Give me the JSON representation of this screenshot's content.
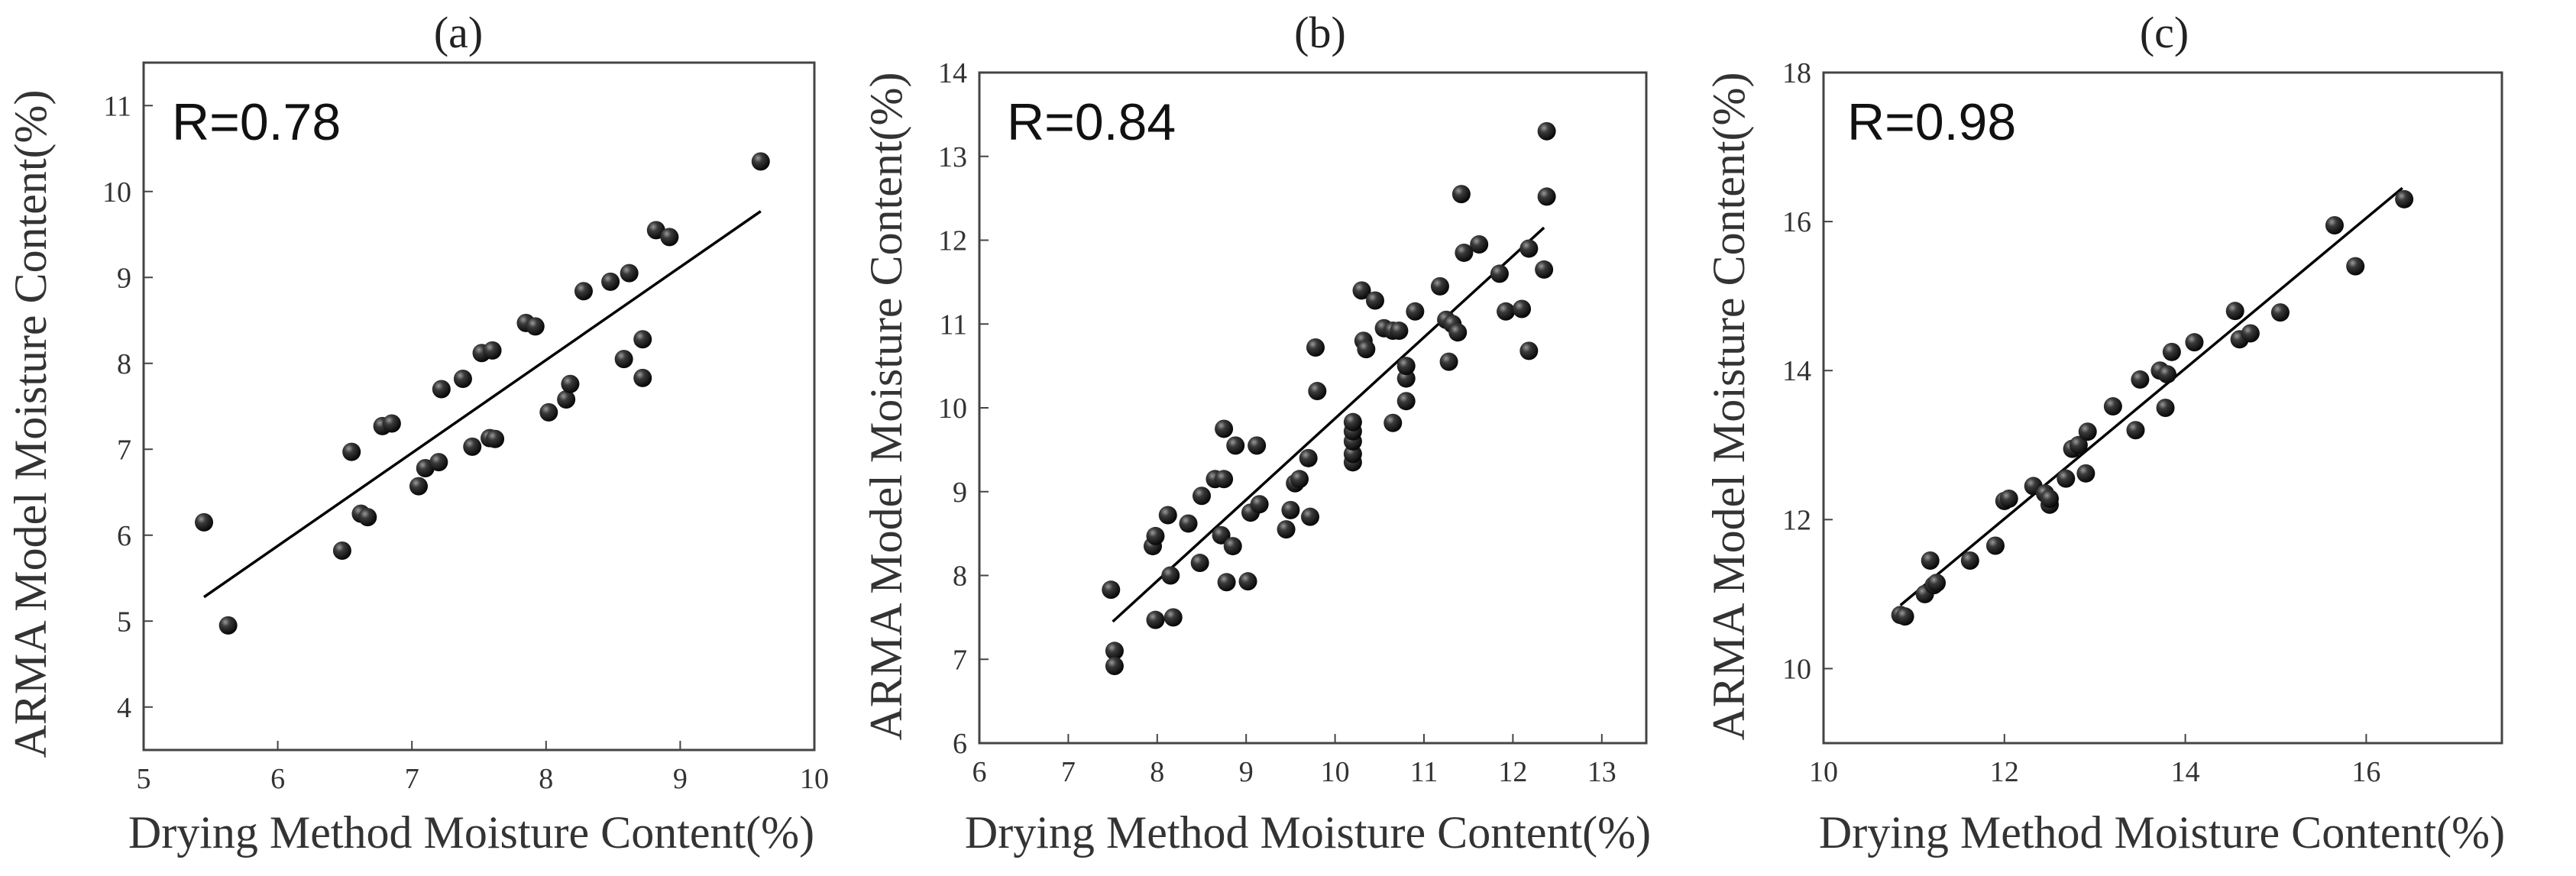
{
  "chart_data": [
    {
      "type": "scatter",
      "title": "(a)",
      "annotation": "R=0.78",
      "xlabel": "Drying Method Moisture Content(%)",
      "ylabel": "ARMA Model Moisture Content(%)",
      "xlim": [
        5,
        10
      ],
      "ylim": [
        3.5,
        11.5
      ],
      "xticks": [
        "5",
        "6",
        "7",
        "8",
        "9",
        "10"
      ],
      "yticks": [
        "4",
        "5",
        "6",
        "7",
        "8",
        "9",
        "10",
        "11"
      ],
      "xtick_values": [
        5,
        6,
        7,
        8,
        9,
        10
      ],
      "ytick_values": [
        4,
        5,
        6,
        7,
        8,
        9,
        10,
        11
      ],
      "fit_line": [
        [
          5.45,
          5.28
        ],
        [
          9.6,
          9.77
        ]
      ],
      "points": [
        [
          5.45,
          6.15
        ],
        [
          5.63,
          4.95
        ],
        [
          6.48,
          5.82
        ],
        [
          6.55,
          6.97
        ],
        [
          6.62,
          6.25
        ],
        [
          6.67,
          6.21
        ],
        [
          6.78,
          7.27
        ],
        [
          6.85,
          7.3
        ],
        [
          7.05,
          6.57
        ],
        [
          7.1,
          6.78
        ],
        [
          7.22,
          7.7
        ],
        [
          7.2,
          6.85
        ],
        [
          7.38,
          7.82
        ],
        [
          7.45,
          7.03
        ],
        [
          7.52,
          8.12
        ],
        [
          7.6,
          8.15
        ],
        [
          7.58,
          7.13
        ],
        [
          7.62,
          7.12
        ],
        [
          7.85,
          8.47
        ],
        [
          7.92,
          8.43
        ],
        [
          8.02,
          7.43
        ],
        [
          8.15,
          7.58
        ],
        [
          8.18,
          7.76
        ],
        [
          8.28,
          8.84
        ],
        [
          8.48,
          8.95
        ],
        [
          8.58,
          8.05
        ],
        [
          8.62,
          9.05
        ],
        [
          8.72,
          8.28
        ],
        [
          8.72,
          7.83
        ],
        [
          8.82,
          9.55
        ],
        [
          8.92,
          9.47
        ],
        [
          9.6,
          10.35
        ]
      ]
    },
    {
      "type": "scatter",
      "title": "(b)",
      "annotation": "R=0.84",
      "xlabel": "Drying Method Moisture Content(%)",
      "ylabel": "ARMA Model Moisture Content(%)",
      "xlim": [
        6,
        13.5
      ],
      "ylim": [
        6,
        14
      ],
      "xticks": [
        "6",
        "7",
        "8",
        "9",
        "10",
        "11",
        "12",
        "13"
      ],
      "yticks": [
        "6",
        "7",
        "8",
        "9",
        "10",
        "11",
        "12",
        "13",
        "14"
      ],
      "xtick_values": [
        6,
        7,
        8,
        9,
        10,
        11,
        12,
        13
      ],
      "ytick_values": [
        6,
        7,
        8,
        9,
        10,
        11,
        12,
        13,
        14
      ],
      "fit_line": [
        [
          7.5,
          7.45
        ],
        [
          12.35,
          12.15
        ]
      ],
      "points": [
        [
          7.48,
          7.83
        ],
        [
          7.52,
          7.1
        ],
        [
          7.52,
          6.92
        ],
        [
          7.95,
          8.35
        ],
        [
          7.98,
          8.47
        ],
        [
          7.98,
          7.47
        ],
        [
          8.12,
          8.72
        ],
        [
          8.15,
          8.0
        ],
        [
          8.18,
          7.5
        ],
        [
          8.35,
          8.62
        ],
        [
          8.48,
          8.15
        ],
        [
          8.5,
          8.95
        ],
        [
          8.65,
          9.15
        ],
        [
          8.72,
          8.48
        ],
        [
          8.75,
          9.15
        ],
        [
          8.75,
          9.75
        ],
        [
          8.78,
          7.92
        ],
        [
          8.85,
          8.35
        ],
        [
          8.88,
          9.55
        ],
        [
          9.02,
          7.93
        ],
        [
          9.05,
          8.75
        ],
        [
          9.12,
          9.55
        ],
        [
          9.15,
          8.85
        ],
        [
          9.45,
          8.55
        ],
        [
          9.5,
          8.78
        ],
        [
          9.55,
          9.1
        ],
        [
          9.6,
          9.15
        ],
        [
          9.7,
          9.4
        ],
        [
          9.72,
          8.7
        ],
        [
          9.78,
          10.72
        ],
        [
          9.8,
          10.2
        ],
        [
          10.2,
          9.35
        ],
        [
          10.2,
          9.45
        ],
        [
          10.2,
          9.6
        ],
        [
          10.2,
          9.72
        ],
        [
          10.2,
          9.83
        ],
        [
          10.3,
          11.4
        ],
        [
          10.32,
          10.8
        ],
        [
          10.35,
          10.7
        ],
        [
          10.45,
          11.28
        ],
        [
          10.55,
          10.95
        ],
        [
          10.65,
          9.82
        ],
        [
          10.65,
          10.92
        ],
        [
          10.72,
          10.92
        ],
        [
          10.8,
          10.08
        ],
        [
          10.8,
          10.35
        ],
        [
          10.8,
          10.5
        ],
        [
          10.9,
          11.15
        ],
        [
          11.18,
          11.45
        ],
        [
          11.25,
          11.05
        ],
        [
          11.28,
          10.55
        ],
        [
          11.32,
          11.0
        ],
        [
          11.38,
          10.9
        ],
        [
          11.42,
          12.55
        ],
        [
          11.45,
          11.85
        ],
        [
          11.62,
          11.95
        ],
        [
          11.85,
          11.6
        ],
        [
          11.92,
          11.15
        ],
        [
          12.1,
          11.18
        ],
        [
          12.18,
          11.9
        ],
        [
          12.18,
          10.68
        ],
        [
          12.35,
          11.65
        ],
        [
          12.38,
          12.52
        ],
        [
          12.38,
          13.3
        ]
      ]
    },
    {
      "type": "scatter",
      "title": "(c)",
      "annotation": "R=0.98",
      "xlabel": "Drying Method Moisture Content(%)",
      "ylabel": "ARMA Model Moisture Content(%)",
      "xlim": [
        10,
        17.5
      ],
      "ylim": [
        9,
        18
      ],
      "xticks": [
        "10",
        "12",
        "14",
        "16"
      ],
      "yticks": [
        "10",
        "12",
        "14",
        "16",
        "18"
      ],
      "xtick_values": [
        10,
        12,
        14,
        16
      ],
      "ytick_values": [
        10,
        12,
        14,
        16,
        18
      ],
      "fit_line": [
        [
          10.85,
          10.85
        ],
        [
          16.4,
          16.45
        ]
      ],
      "points": [
        [
          10.85,
          10.72
        ],
        [
          10.9,
          10.7
        ],
        [
          11.12,
          11.0
        ],
        [
          11.18,
          11.45
        ],
        [
          11.22,
          11.12
        ],
        [
          11.25,
          11.15
        ],
        [
          11.62,
          11.45
        ],
        [
          11.9,
          11.65
        ],
        [
          12.0,
          12.25
        ],
        [
          12.05,
          12.28
        ],
        [
          12.32,
          12.45
        ],
        [
          12.45,
          12.35
        ],
        [
          12.5,
          12.2
        ],
        [
          12.5,
          12.28
        ],
        [
          12.68,
          12.55
        ],
        [
          12.75,
          12.95
        ],
        [
          12.82,
          13.0
        ],
        [
          12.9,
          12.62
        ],
        [
          12.92,
          13.18
        ],
        [
          13.2,
          13.52
        ],
        [
          13.45,
          13.2
        ],
        [
          13.5,
          13.88
        ],
        [
          13.72,
          14.0
        ],
        [
          13.78,
          13.5
        ],
        [
          13.8,
          13.95
        ],
        [
          13.85,
          14.25
        ],
        [
          14.1,
          14.38
        ],
        [
          14.55,
          14.8
        ],
        [
          14.6,
          14.42
        ],
        [
          14.72,
          14.5
        ],
        [
          15.05,
          14.78
        ],
        [
          15.65,
          15.95
        ],
        [
          15.88,
          15.4
        ],
        [
          16.42,
          16.3
        ]
      ]
    }
  ]
}
